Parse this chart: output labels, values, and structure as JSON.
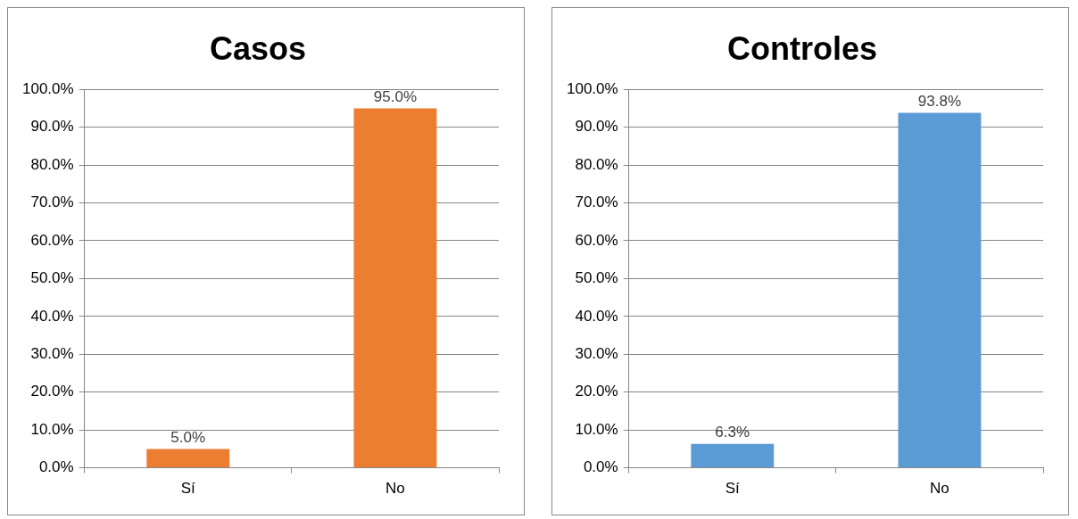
{
  "chart_data": [
    {
      "type": "bar",
      "title": "Casos",
      "categories": [
        "Sí",
        "No"
      ],
      "series": [
        {
          "color": "#ed7d31",
          "values": [
            5.0,
            95.0
          ],
          "value_labels": [
            "5.0%",
            "95.0%"
          ]
        }
      ],
      "ylim": [
        0,
        100
      ],
      "yticks": [
        {
          "value": 0,
          "label": "0.0%"
        },
        {
          "value": 10,
          "label": "10.0%"
        },
        {
          "value": 20,
          "label": "20.0%"
        },
        {
          "value": 30,
          "label": "30.0%"
        },
        {
          "value": 40,
          "label": "40.0%"
        },
        {
          "value": 50,
          "label": "50.0%"
        },
        {
          "value": 60,
          "label": "60.0%"
        },
        {
          "value": 70,
          "label": "70.0%"
        },
        {
          "value": 80,
          "label": "80.0%"
        },
        {
          "value": 90,
          "label": "90.0%"
        },
        {
          "value": 100,
          "label": "100.0%"
        }
      ],
      "grid": "y",
      "legend": false
    },
    {
      "type": "bar",
      "title": "Controles",
      "categories": [
        "Sí",
        "No"
      ],
      "series": [
        {
          "color": "#5b9bd5",
          "values": [
            6.3,
            93.8
          ],
          "value_labels": [
            "6.3%",
            "93.8%"
          ]
        }
      ],
      "ylim": [
        0,
        100
      ],
      "yticks": [
        {
          "value": 0,
          "label": "0.0%"
        },
        {
          "value": 10,
          "label": "10.0%"
        },
        {
          "value": 20,
          "label": "20.0%"
        },
        {
          "value": 30,
          "label": "30.0%"
        },
        {
          "value": 40,
          "label": "40.0%"
        },
        {
          "value": 50,
          "label": "50.0%"
        },
        {
          "value": 60,
          "label": "60.0%"
        },
        {
          "value": 70,
          "label": "70.0%"
        },
        {
          "value": 80,
          "label": "80.0%"
        },
        {
          "value": 90,
          "label": "90.0%"
        },
        {
          "value": 100,
          "label": "100.0%"
        }
      ],
      "grid": "y",
      "legend": false
    }
  ]
}
